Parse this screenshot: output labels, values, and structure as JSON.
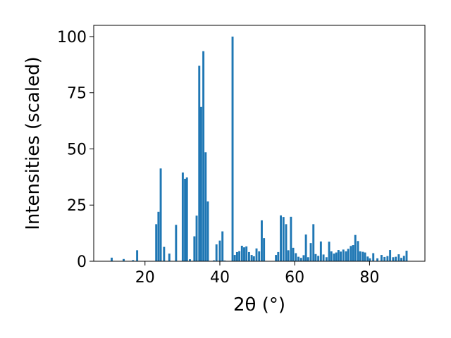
{
  "chart_data": {
    "type": "bar",
    "xlabel": "2θ (°)",
    "ylabel": "Intensities (scaled)",
    "xlim": [
      6.3,
      94.8
    ],
    "ylim": [
      0,
      105
    ],
    "xticks": [
      20,
      40,
      60,
      80
    ],
    "yticks": [
      0,
      25,
      50,
      75,
      100
    ],
    "grid": false,
    "legend": "none",
    "bar_color": "#1f77b4",
    "bar_width": 0.55,
    "series": [
      {
        "x": [
          11.1,
          14.3,
          16.8,
          17.9,
          23.0,
          23.6,
          24.2,
          25.1,
          26.5,
          28.3,
          30.1,
          30.7,
          31.2,
          32.0,
          33.2,
          33.8,
          34.5,
          35.0,
          35.6,
          36.2,
          36.8,
          38.4,
          39.1,
          40.0,
          40.7,
          41.3,
          43.4,
          44.0,
          44.6,
          45.2,
          45.9,
          46.5,
          47.1,
          47.8,
          48.5,
          49.1,
          49.8,
          50.5,
          51.2,
          51.8,
          55.0,
          55.6,
          56.3,
          57.0,
          57.7,
          58.3,
          59.0,
          59.6,
          60.3,
          61.0,
          61.7,
          62.4,
          63.0,
          63.6,
          64.3,
          65.0,
          65.6,
          66.3,
          67.0,
          67.7,
          68.5,
          69.2,
          69.8,
          70.5,
          71.1,
          71.7,
          72.3,
          73.0,
          73.7,
          74.3,
          75.0,
          75.6,
          76.2,
          76.9,
          77.5,
          78.2,
          78.8,
          79.5,
          80.1,
          81.0,
          82.1,
          83.2,
          84.0,
          84.8,
          85.5,
          86.3,
          87.0,
          87.8,
          88.5,
          89.2,
          89.9
        ],
        "values": [
          1.6,
          1.0,
          0.5,
          4.9,
          16.5,
          22.0,
          41.3,
          6.4,
          3.4,
          16.2,
          39.5,
          36.7,
          37.3,
          0.9,
          11.1,
          20.3,
          87.0,
          68.7,
          93.5,
          48.5,
          26.6,
          0.4,
          7.5,
          9.2,
          13.3,
          0.3,
          100.0,
          2.8,
          4.1,
          4.5,
          6.9,
          6.2,
          6.6,
          4.1,
          2.8,
          2.2,
          5.7,
          4.4,
          18.2,
          10.3,
          2.8,
          4.1,
          20.4,
          19.7,
          16.5,
          4.9,
          19.8,
          6.0,
          3.6,
          2.0,
          1.5,
          2.7,
          11.9,
          1.8,
          8.1,
          16.5,
          3.2,
          2.4,
          8.8,
          3.0,
          1.8,
          8.7,
          4.4,
          3.4,
          3.9,
          5.0,
          4.3,
          5.2,
          4.4,
          5.5,
          6.8,
          7.2,
          11.7,
          9.0,
          4.4,
          4.2,
          3.9,
          2.1,
          1.3,
          3.6,
          1.3,
          2.8,
          1.9,
          2.3,
          5.0,
          1.8,
          2.0,
          3.1,
          1.5,
          2.4,
          4.7
        ]
      }
    ]
  }
}
